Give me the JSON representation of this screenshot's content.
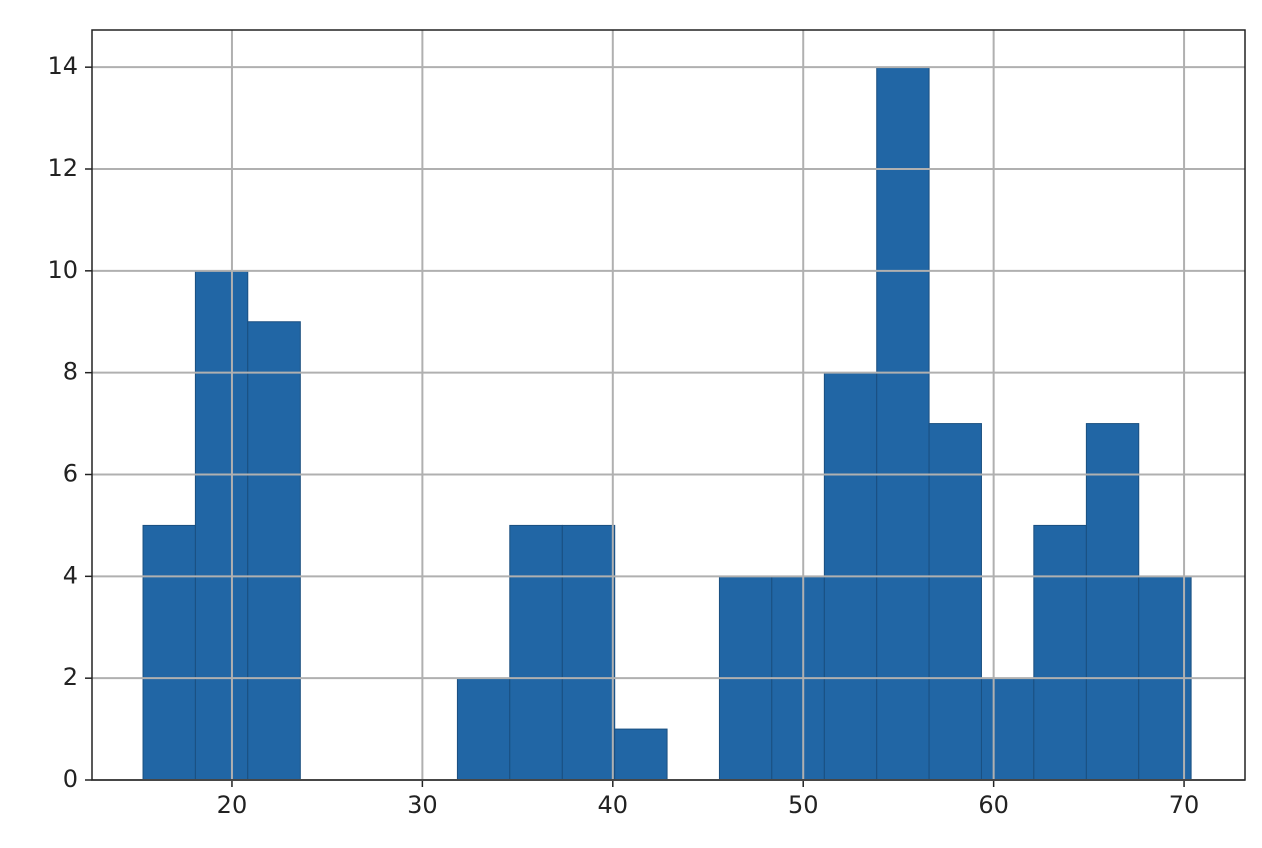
{
  "chart_data": {
    "type": "histogram",
    "bins": [
      15.33,
      18.08,
      20.83,
      23.59,
      26.34,
      29.09,
      31.84,
      34.59,
      37.35,
      40.1,
      42.85,
      45.6,
      48.35,
      51.11,
      53.86,
      56.61,
      59.36,
      62.11,
      64.87,
      67.62,
      70.37
    ],
    "values": [
      5,
      10,
      9,
      0,
      0,
      0,
      2,
      5,
      5,
      1,
      0,
      4,
      4,
      8,
      14,
      7,
      2,
      5,
      7,
      4
    ],
    "color": "#2166a5",
    "xlim": [
      12.65,
      73.2
    ],
    "xticks": [
      20,
      30,
      40,
      50,
      60,
      70
    ],
    "ylim": [
      0,
      14.73
    ],
    "yticks": [
      0,
      2,
      4,
      6,
      8,
      10,
      12,
      14
    ],
    "grid": true
  }
}
